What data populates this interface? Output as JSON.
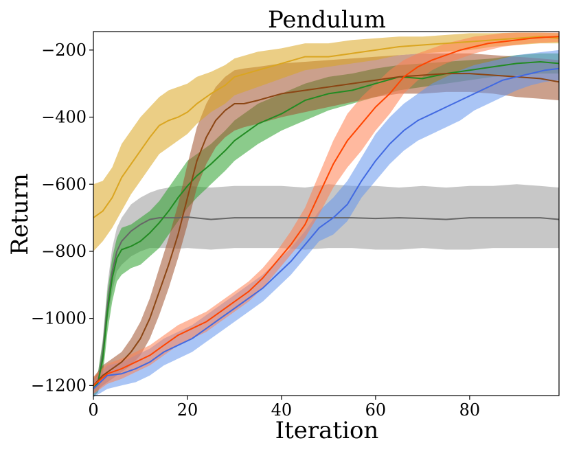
{
  "chart_data": {
    "type": "line",
    "title": "Pendulum",
    "xlabel": "Iteration",
    "ylabel": "Return",
    "xlim": [
      0,
      99
    ],
    "ylim": [
      -1230,
      -145
    ],
    "xticks": [
      0,
      20,
      40,
      60,
      80
    ],
    "xtick_labels": [
      "0",
      "20",
      "40",
      "60",
      "80"
    ],
    "yticks": [
      -1200,
      -1000,
      -800,
      -600,
      -400,
      -200
    ],
    "ytick_labels": [
      "−1200",
      "−1000",
      "−800",
      "−600",
      "−400",
      "−200"
    ],
    "grid": false,
    "legend": "none",
    "series": [
      {
        "name": "gray",
        "color": "#666666",
        "band_color": "#999999",
        "x": [
          0,
          1,
          2,
          3,
          4,
          5,
          6,
          8,
          10,
          12,
          14,
          16,
          18,
          20,
          25,
          30,
          35,
          40,
          45,
          50,
          55,
          60,
          65,
          70,
          75,
          80,
          85,
          90,
          95,
          99
        ],
        "y": [
          -1200,
          -1190,
          -1100,
          -960,
          -860,
          -800,
          -770,
          -740,
          -720,
          -705,
          -700,
          -700,
          -700,
          -698,
          -705,
          -700,
          -700,
          -700,
          -700,
          -700,
          -700,
          -702,
          -700,
          -702,
          -705,
          -700,
          -700,
          -700,
          -700,
          -705
        ],
        "lower": [
          -1230,
          -1220,
          -1150,
          -1010,
          -920,
          -860,
          -840,
          -815,
          -800,
          -790,
          -790,
          -790,
          -792,
          -790,
          -795,
          -790,
          -790,
          -790,
          -795,
          -790,
          -790,
          -795,
          -795,
          -790,
          -795,
          -795,
          -790,
          -790,
          -790,
          -790
        ],
        "upper": [
          -1180,
          -1160,
          -1060,
          -900,
          -790,
          -730,
          -700,
          -660,
          -640,
          -625,
          -615,
          -610,
          -605,
          -605,
          -610,
          -605,
          -605,
          -605,
          -610,
          -600,
          -605,
          -605,
          -610,
          -605,
          -610,
          -605,
          -605,
          -600,
          -605,
          -610
        ]
      },
      {
        "name": "green",
        "color": "#228B22",
        "band_color": "#2ca02c",
        "x": [
          0,
          1,
          2,
          3,
          4,
          5,
          6,
          8,
          10,
          12,
          14,
          16,
          18,
          20,
          22,
          25,
          28,
          30,
          35,
          40,
          45,
          50,
          55,
          60,
          65,
          70,
          75,
          80,
          85,
          90,
          95,
          99
        ],
        "y": [
          -1210,
          -1190,
          -1120,
          -980,
          -880,
          -820,
          -795,
          -785,
          -770,
          -745,
          -715,
          -680,
          -640,
          -605,
          -575,
          -540,
          -500,
          -470,
          -420,
          -390,
          -350,
          -330,
          -320,
          -300,
          -280,
          -285,
          -270,
          -260,
          -250,
          -240,
          -235,
          -240
        ],
        "lower": [
          -1235,
          -1220,
          -1170,
          -1040,
          -950,
          -890,
          -870,
          -850,
          -840,
          -815,
          -790,
          -750,
          -710,
          -670,
          -640,
          -600,
          -560,
          -530,
          -480,
          -440,
          -410,
          -380,
          -360,
          -340,
          -320,
          -310,
          -300,
          -290,
          -280,
          -275,
          -270,
          -270
        ],
        "upper": [
          -1185,
          -1160,
          -1070,
          -920,
          -820,
          -760,
          -730,
          -720,
          -700,
          -680,
          -650,
          -610,
          -570,
          -530,
          -510,
          -480,
          -440,
          -410,
          -360,
          -330,
          -300,
          -280,
          -270,
          -255,
          -245,
          -240,
          -235,
          -230,
          -225,
          -215,
          -210,
          -210
        ]
      },
      {
        "name": "brown",
        "color": "#8B4513",
        "band_color": "#A0522D",
        "x": [
          0,
          2,
          4,
          6,
          8,
          10,
          12,
          14,
          16,
          18,
          20,
          22,
          24,
          26,
          28,
          30,
          32,
          35,
          40,
          45,
          50,
          55,
          60,
          65,
          70,
          75,
          80,
          85,
          90,
          95,
          99
        ],
        "y": [
          -1200,
          -1170,
          -1150,
          -1130,
          -1100,
          -1060,
          -1000,
          -920,
          -840,
          -750,
          -640,
          -530,
          -460,
          -410,
          -380,
          -360,
          -360,
          -350,
          -330,
          -320,
          -310,
          -300,
          -290,
          -280,
          -275,
          -270,
          -270,
          -275,
          -280,
          -285,
          -295
        ],
        "lower": [
          -1225,
          -1200,
          -1180,
          -1160,
          -1140,
          -1110,
          -1060,
          -990,
          -910,
          -820,
          -720,
          -610,
          -540,
          -490,
          -460,
          -440,
          -430,
          -420,
          -400,
          -385,
          -370,
          -355,
          -340,
          -330,
          -330,
          -325,
          -325,
          -330,
          -340,
          -345,
          -350
        ],
        "upper": [
          -1175,
          -1140,
          -1120,
          -1100,
          -1060,
          -1010,
          -940,
          -850,
          -760,
          -660,
          -540,
          -430,
          -360,
          -310,
          -280,
          -260,
          -255,
          -250,
          -240,
          -235,
          -230,
          -225,
          -220,
          -215,
          -210,
          -210,
          -210,
          -215,
          -220,
          -225,
          -230
        ]
      },
      {
        "name": "gold",
        "color": "#DAA520",
        "band_color": "#DAA520",
        "x": [
          0,
          2,
          4,
          6,
          8,
          10,
          12,
          14,
          16,
          18,
          20,
          22,
          25,
          28,
          30,
          35,
          40,
          45,
          50,
          55,
          60,
          65,
          70,
          75,
          80,
          85,
          90,
          95,
          99
        ],
        "y": [
          -700,
          -680,
          -640,
          -580,
          -540,
          -500,
          -460,
          -425,
          -410,
          -400,
          -385,
          -360,
          -330,
          -305,
          -280,
          -260,
          -240,
          -220,
          -220,
          -210,
          -200,
          -190,
          -185,
          -180,
          -175,
          -170,
          -165,
          -160,
          -165
        ],
        "lower": [
          -800,
          -770,
          -730,
          -680,
          -630,
          -590,
          -550,
          -510,
          -490,
          -470,
          -450,
          -420,
          -385,
          -360,
          -335,
          -310,
          -285,
          -260,
          -250,
          -240,
          -230,
          -215,
          -210,
          -205,
          -200,
          -190,
          -185,
          -180,
          -180
        ],
        "upper": [
          -600,
          -590,
          -550,
          -480,
          -440,
          -400,
          -370,
          -340,
          -320,
          -310,
          -300,
          -280,
          -265,
          -245,
          -225,
          -205,
          -195,
          -180,
          -180,
          -170,
          -165,
          -160,
          -160,
          -155,
          -150,
          -150,
          -148,
          -148,
          -150
        ]
      },
      {
        "name": "blue",
        "color": "#4169E1",
        "band_color": "#6495ED",
        "x": [
          0,
          3,
          6,
          9,
          12,
          15,
          18,
          21,
          24,
          27,
          30,
          33,
          36,
          39,
          42,
          45,
          48,
          51,
          54,
          57,
          60,
          63,
          66,
          69,
          72,
          75,
          78,
          81,
          84,
          87,
          90,
          93,
          96,
          99
        ],
        "y": [
          -1210,
          -1170,
          -1165,
          -1150,
          -1130,
          -1100,
          -1080,
          -1060,
          -1030,
          -1000,
          -970,
          -940,
          -910,
          -870,
          -830,
          -780,
          -730,
          -700,
          -660,
          -590,
          -530,
          -480,
          -440,
          -410,
          -390,
          -370,
          -350,
          -330,
          -310,
          -290,
          -280,
          -270,
          -260,
          -255
        ],
        "lower": [
          -1235,
          -1210,
          -1200,
          -1190,
          -1170,
          -1140,
          -1120,
          -1100,
          -1070,
          -1040,
          -1010,
          -980,
          -950,
          -910,
          -870,
          -820,
          -770,
          -750,
          -710,
          -640,
          -590,
          -540,
          -500,
          -470,
          -450,
          -430,
          -410,
          -380,
          -360,
          -340,
          -320,
          -305,
          -295,
          -290
        ],
        "upper": [
          -1185,
          -1140,
          -1130,
          -1110,
          -1090,
          -1060,
          -1040,
          -1020,
          -990,
          -960,
          -930,
          -900,
          -870,
          -830,
          -790,
          -740,
          -680,
          -640,
          -590,
          -520,
          -450,
          -400,
          -360,
          -330,
          -300,
          -280,
          -260,
          -245,
          -235,
          -225,
          -215,
          -210,
          -205,
          -200
        ]
      },
      {
        "name": "orange",
        "color": "#FF4500",
        "band_color": "#FF7F50",
        "x": [
          0,
          3,
          6,
          9,
          12,
          15,
          18,
          21,
          24,
          27,
          30,
          33,
          36,
          39,
          42,
          45,
          48,
          51,
          54,
          57,
          60,
          63,
          66,
          69,
          72,
          75,
          78,
          81,
          84,
          87,
          90,
          93,
          96,
          99
        ],
        "y": [
          -1200,
          -1165,
          -1150,
          -1130,
          -1110,
          -1080,
          -1050,
          -1030,
          -1010,
          -980,
          -950,
          -920,
          -880,
          -830,
          -780,
          -720,
          -630,
          -540,
          -470,
          -420,
          -370,
          -330,
          -280,
          -250,
          -230,
          -215,
          -200,
          -190,
          -180,
          -175,
          -170,
          -165,
          -162,
          -160
        ],
        "lower": [
          -1225,
          -1195,
          -1180,
          -1160,
          -1140,
          -1110,
          -1080,
          -1060,
          -1040,
          -1010,
          -980,
          -950,
          -910,
          -860,
          -810,
          -760,
          -690,
          -610,
          -550,
          -500,
          -440,
          -390,
          -330,
          -290,
          -260,
          -240,
          -225,
          -210,
          -200,
          -190,
          -185,
          -180,
          -178,
          -175
        ],
        "upper": [
          -1175,
          -1135,
          -1120,
          -1100,
          -1080,
          -1050,
          -1020,
          -1000,
          -980,
          -950,
          -920,
          -890,
          -850,
          -800,
          -740,
          -670,
          -570,
          -470,
          -390,
          -340,
          -300,
          -260,
          -230,
          -210,
          -195,
          -180,
          -170,
          -160,
          -155,
          -150,
          -148,
          -148,
          -148,
          -148
        ]
      }
    ]
  }
}
